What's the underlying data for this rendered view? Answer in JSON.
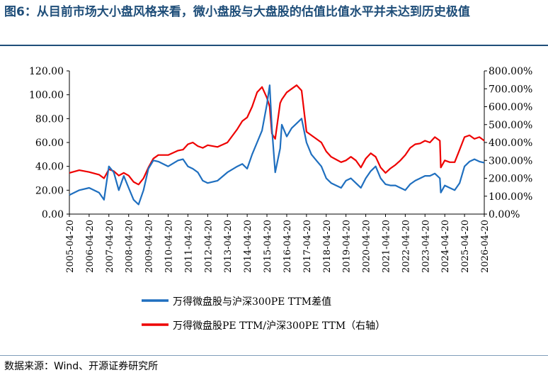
{
  "title": "图6：从目前市场大小盘风格来看，微小盘股与大盘股的估值比值水平并未达到历史极值",
  "source": "数据来源：Wind、开源证券研究所",
  "colors": {
    "series_diff": "#1f6fbf",
    "series_ratio": "#ee0000",
    "title": "#1f4e79",
    "axis": "#000000"
  },
  "chart_data": {
    "type": "line",
    "title": "",
    "x_ticks": [
      "2005-04-20",
      "2006-04-20",
      "2007-04-20",
      "2008-04-20",
      "2009-04-20",
      "2010-04-20",
      "2011-04-20",
      "2012-04-20",
      "2013-04-20",
      "2014-04-20",
      "2015-04-20",
      "2016-04-20",
      "2017-04-20",
      "2018-04-20",
      "2019-04-20",
      "2020-04-20",
      "2021-04-20",
      "2022-04-20",
      "2023-04-20",
      "2024-04-20",
      "2025-04-20",
      "2026-04-20"
    ],
    "xlim": [
      "2005-04-20",
      "2026-04-20"
    ],
    "y_left": {
      "ylim": [
        0,
        120
      ],
      "ticks": [
        "0.00",
        "20.00",
        "40.00",
        "60.00",
        "80.00",
        "100.00",
        "120.00"
      ]
    },
    "y_right": {
      "ylim": [
        0,
        800
      ],
      "ticks": [
        "0.00%",
        "100.00%",
        "200.00%",
        "300.00%",
        "400.00%",
        "500.00%",
        "600.00%",
        "700.00%",
        "800.00%"
      ]
    },
    "legend_position": "bottom",
    "series": [
      {
        "name": "万得微盘股与沪深300PE TTM差值",
        "axis": "left",
        "x": [
          "2005-04-20",
          "2005-10-20",
          "2006-04-20",
          "2006-10-20",
          "2007-01-20",
          "2007-04-20",
          "2007-07-20",
          "2007-10-20",
          "2008-01-20",
          "2008-04-20",
          "2008-07-20",
          "2008-10-20",
          "2009-01-20",
          "2009-04-20",
          "2009-07-20",
          "2009-10-20",
          "2010-04-20",
          "2010-10-20",
          "2011-01-20",
          "2011-04-20",
          "2011-07-20",
          "2011-10-20",
          "2012-01-20",
          "2012-04-20",
          "2012-10-20",
          "2013-04-20",
          "2013-10-20",
          "2014-01-20",
          "2014-04-20",
          "2014-07-20",
          "2014-10-20",
          "2015-01-20",
          "2015-04-20",
          "2015-06-10",
          "2015-07-20",
          "2015-09-20",
          "2015-12-20",
          "2016-01-20",
          "2016-04-20",
          "2016-07-20",
          "2016-10-20",
          "2017-01-20",
          "2017-04-20",
          "2017-07-20",
          "2017-10-20",
          "2018-01-20",
          "2018-04-20",
          "2018-07-20",
          "2018-10-20",
          "2019-01-20",
          "2019-04-20",
          "2019-07-20",
          "2019-10-20",
          "2020-01-20",
          "2020-04-20",
          "2020-07-20",
          "2020-10-20",
          "2021-01-20",
          "2021-04-20",
          "2021-07-20",
          "2021-10-20",
          "2022-01-20",
          "2022-04-20",
          "2022-07-20",
          "2022-10-20",
          "2023-01-20",
          "2023-04-20",
          "2023-07-20",
          "2023-10-20",
          "2024-01-20",
          "2024-02-07",
          "2024-04-20",
          "2024-07-20",
          "2024-10-20",
          "2025-01-20",
          "2025-04-20",
          "2025-07-20",
          "2025-10-20",
          "2026-01-20",
          "2026-04-20"
        ],
        "values": [
          16,
          20,
          22,
          18,
          12,
          40,
          35,
          20,
          32,
          22,
          12,
          8,
          20,
          38,
          45,
          44,
          40,
          45,
          46,
          40,
          38,
          35,
          28,
          26,
          28,
          35,
          40,
          42,
          38,
          50,
          60,
          70,
          92,
          108,
          72,
          35,
          55,
          75,
          65,
          72,
          76,
          80,
          60,
          50,
          45,
          40,
          30,
          26,
          24,
          22,
          28,
          30,
          26,
          22,
          30,
          36,
          40,
          30,
          25,
          24,
          24,
          22,
          20,
          25,
          28,
          30,
          32,
          32,
          34,
          30,
          18,
          24,
          22,
          20,
          26,
          40,
          44,
          46,
          44,
          43
        ]
      },
      {
        "name": "万得微盘股PE TTM/沪深300PE  TTM（右轴）",
        "axis": "right",
        "x": [
          "2005-04-20",
          "2005-10-20",
          "2006-04-20",
          "2006-10-20",
          "2007-01-20",
          "2007-04-20",
          "2007-07-20",
          "2007-10-20",
          "2008-01-20",
          "2008-04-20",
          "2008-07-20",
          "2008-10-20",
          "2009-01-20",
          "2009-04-20",
          "2009-07-20",
          "2009-10-20",
          "2010-04-20",
          "2010-10-20",
          "2011-01-20",
          "2011-04-20",
          "2011-07-20",
          "2011-10-20",
          "2012-01-20",
          "2012-04-20",
          "2012-10-20",
          "2013-04-20",
          "2013-10-20",
          "2014-01-20",
          "2014-04-20",
          "2014-07-20",
          "2014-10-20",
          "2015-01-20",
          "2015-04-20",
          "2015-06-10",
          "2015-07-20",
          "2015-09-20",
          "2015-12-20",
          "2016-01-20",
          "2016-04-20",
          "2016-07-20",
          "2016-10-20",
          "2017-01-20",
          "2017-04-20",
          "2017-07-20",
          "2017-10-20",
          "2018-01-20",
          "2018-04-20",
          "2018-07-20",
          "2018-10-20",
          "2019-01-20",
          "2019-04-20",
          "2019-07-20",
          "2019-10-20",
          "2020-01-20",
          "2020-04-20",
          "2020-07-20",
          "2020-10-20",
          "2021-01-20",
          "2021-04-20",
          "2021-07-20",
          "2021-10-20",
          "2022-01-20",
          "2022-04-20",
          "2022-07-20",
          "2022-10-20",
          "2023-01-20",
          "2023-04-20",
          "2023-07-20",
          "2023-10-20",
          "2024-01-20",
          "2024-02-07",
          "2024-04-20",
          "2024-07-20",
          "2024-10-20",
          "2025-01-20",
          "2025-04-20",
          "2025-07-20",
          "2025-10-20",
          "2026-01-20",
          "2026-04-20"
        ],
        "values": [
          230,
          245,
          235,
          220,
          200,
          250,
          240,
          215,
          230,
          215,
          180,
          165,
          200,
          260,
          310,
          330,
          330,
          355,
          360,
          390,
          400,
          380,
          370,
          385,
          375,
          400,
          475,
          520,
          540,
          600,
          680,
          710,
          650,
          600,
          450,
          420,
          620,
          640,
          680,
          700,
          720,
          690,
          460,
          440,
          420,
          400,
          350,
          320,
          305,
          290,
          300,
          320,
          300,
          260,
          310,
          340,
          320,
          260,
          230,
          255,
          275,
          300,
          330,
          370,
          390,
          395,
          410,
          400,
          430,
          410,
          260,
          300,
          290,
          290,
          360,
          430,
          440,
          420,
          430,
          410
        ]
      }
    ]
  }
}
